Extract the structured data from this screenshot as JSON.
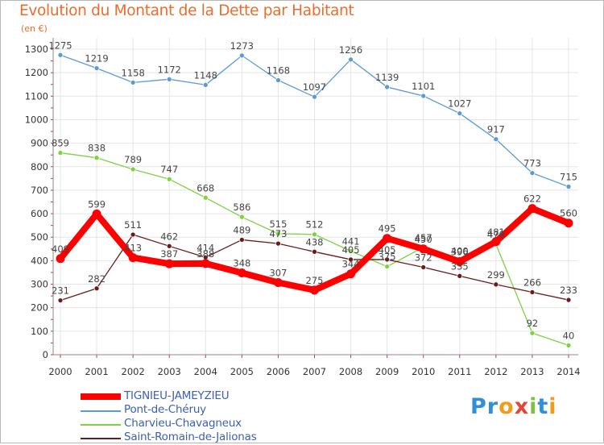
{
  "title": "Evolution du Montant de la Dette par Habitant",
  "subtitle": "(en €)",
  "brand": {
    "letters": [
      {
        "ch": "P",
        "color": "#2f8fd8"
      },
      {
        "ch": "r",
        "color": "#2f8fd8"
      },
      {
        "ch": "o",
        "color": "#f39a1d"
      },
      {
        "ch": "x",
        "color": "#e2463a"
      },
      {
        "ch": "i",
        "color": "#7cc142"
      },
      {
        "ch": "t",
        "color": "#2f8fd8"
      },
      {
        "ch": "i",
        "color": "#f39a1d"
      }
    ]
  },
  "chart_data": {
    "type": "line",
    "x": [
      "2000",
      "2001",
      "2002",
      "2003",
      "2004",
      "2005",
      "2006",
      "2007",
      "2008",
      "2009",
      "2010",
      "2011",
      "2012",
      "2013",
      "2014"
    ],
    "ylim": [
      0,
      1300
    ],
    "yticks": [
      0,
      100,
      200,
      300,
      400,
      500,
      600,
      700,
      800,
      900,
      1000,
      1100,
      1200,
      1300
    ],
    "grid": true,
    "legend": "bottom-left",
    "series": [
      {
        "name": "Pont-de-Chéruy",
        "color": "#5b9bd5",
        "values": [
          1275,
          1219,
          1158,
          1172,
          1148,
          1273,
          1168,
          1097,
          1256,
          1139,
          1101,
          1027,
          917,
          773,
          715
        ]
      },
      {
        "name": "Charvieu-Chavagneux",
        "color": "#7ed143",
        "values": [
          859,
          838,
          789,
          747,
          668,
          586,
          515,
          512,
          441,
          375,
          457,
          400,
          470,
          92,
          40
        ]
      },
      {
        "name": "Saint-Romain-de-Jalionas",
        "color": "#6b1a1a",
        "values": [
          231,
          282,
          511,
          462,
          414,
          489,
          473,
          438,
          405,
          405,
          372,
          335,
          299,
          266,
          233
        ]
      },
      {
        "name": "TIGNIEU-JAMEYZIEU",
        "color": "#ff0000",
        "values": [
          409,
          599,
          413,
          387,
          388,
          348,
          307,
          275,
          344,
          495,
          450,
          396,
          481,
          622,
          560
        ]
      }
    ],
    "data_labels": [
      {
        "series": "Pont-de-Chéruy",
        "color": "#444444",
        "labels": [
          [
            0,
            1275
          ],
          [
            1,
            1219
          ],
          [
            2,
            1158
          ],
          [
            3,
            1172
          ],
          [
            4,
            1148
          ],
          [
            5,
            1273
          ],
          [
            6,
            1168
          ],
          [
            7,
            1097
          ],
          [
            8,
            1256
          ],
          [
            9,
            1139
          ],
          [
            10,
            1101
          ],
          [
            11,
            1027
          ],
          [
            12,
            917
          ],
          [
            13,
            773
          ],
          [
            14,
            715
          ]
        ]
      },
      {
        "series": "Charvieu-Chavagneux",
        "color": "#444444",
        "labels": [
          [
            0,
            859
          ],
          [
            1,
            838
          ],
          [
            2,
            789
          ],
          [
            3,
            747
          ],
          [
            4,
            668
          ],
          [
            5,
            586
          ],
          [
            6,
            515
          ],
          [
            7,
            512
          ],
          [
            8,
            441
          ],
          [
            9,
            375
          ],
          [
            10,
            457
          ],
          [
            11,
            400
          ],
          [
            12,
            470
          ],
          [
            13,
            92
          ],
          [
            14,
            40
          ]
        ]
      },
      {
        "series": "Saint-Romain-de-Jalionas",
        "color": "#444444",
        "labels": [
          [
            0,
            231
          ],
          [
            1,
            282
          ],
          [
            2,
            511
          ],
          [
            3,
            462
          ],
          [
            4,
            414
          ],
          [
            5,
            489
          ],
          [
            6,
            473
          ],
          [
            7,
            438
          ],
          [
            8,
            405
          ],
          [
            9,
            405
          ],
          [
            10,
            372
          ],
          [
            11,
            335
          ],
          [
            12,
            299
          ],
          [
            13,
            266
          ],
          [
            14,
            233
          ]
        ]
      },
      {
        "series": "TIGNIEU-JAMEYZIEU",
        "color": "#444444",
        "labels": [
          [
            0,
            409
          ],
          [
            1,
            599
          ],
          [
            2,
            413
          ],
          [
            3,
            387
          ],
          [
            4,
            388
          ],
          [
            5,
            348
          ],
          [
            6,
            307
          ],
          [
            7,
            275
          ],
          [
            8,
            344
          ],
          [
            9,
            495
          ],
          [
            10,
            450
          ],
          [
            11,
            396
          ],
          [
            12,
            481
          ],
          [
            13,
            622
          ],
          [
            14,
            560
          ]
        ]
      }
    ]
  }
}
